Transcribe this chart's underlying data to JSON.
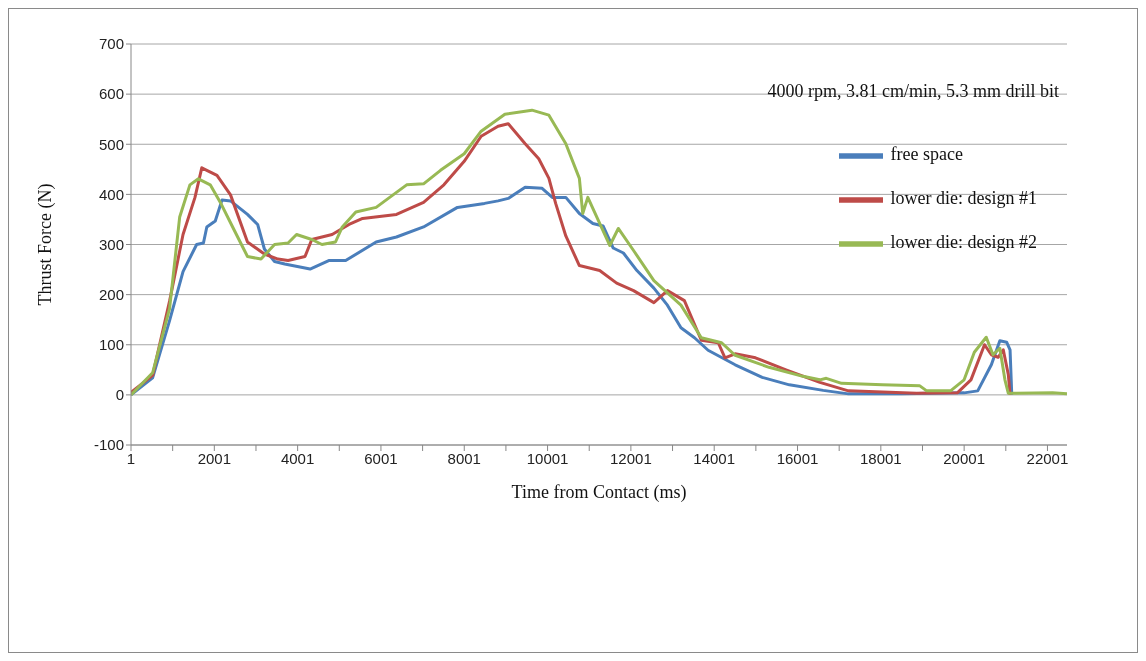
{
  "chart_data": {
    "type": "line",
    "xlabel": "Time from Contact (ms)",
    "ylabel": "Thrust Force (N)",
    "annotations": [
      "4000 rpm, 3.81 cm/min, 5.3 mm drill bit"
    ],
    "xlim": [
      1,
      22470
    ],
    "xticks": [
      1,
      {
        "value": 1001,
        "label": null
      },
      2001,
      {
        "value": 3001,
        "label": null
      },
      4001,
      {
        "value": 5001,
        "label": null
      },
      6001,
      {
        "value": 7001,
        "label": null
      },
      8001,
      {
        "value": 9001,
        "label": null
      },
      10001,
      {
        "value": 11001,
        "label": null
      },
      12001,
      {
        "value": 13001,
        "label": null
      },
      14001,
      {
        "value": 15001,
        "label": null
      },
      16001,
      {
        "value": 17001,
        "label": null
      },
      18001,
      {
        "value": 19001,
        "label": null
      },
      20001,
      {
        "value": 21001,
        "label": null
      },
      22001
    ],
    "ylim": [
      -100,
      700
    ],
    "yticks": [
      -100,
      0,
      100,
      200,
      300,
      400,
      500,
      600,
      700
    ],
    "grid": "y",
    "legend": "right",
    "marker": "none",
    "series": [
      {
        "name": "free space",
        "color": "#4a7ebb",
        "x": [
          1,
          520,
          927,
          1250,
          1577,
          1740,
          1821,
          2024,
          2187,
          2390,
          2797,
          3041,
          3203,
          3447,
          3691,
          4300,
          4748,
          5154,
          5886,
          6374,
          7024,
          7837,
          8487,
          8813,
          9057,
          9463,
          9870,
          10114,
          10439,
          10764,
          11089,
          11333,
          11577,
          11821,
          12146,
          12553,
          12878,
          13203,
          13528,
          13854,
          14504,
          15154,
          15805,
          16618,
          17222,
          18500,
          20000,
          20327,
          20654,
          20858,
          21021,
          21103,
          21144
        ],
        "values": [
          0,
          34,
          148,
          246,
          300,
          303,
          335,
          347,
          389,
          387,
          360,
          340,
          291,
          266,
          261,
          251,
          268,
          268,
          305,
          315,
          335,
          374,
          382,
          387,
          392,
          414,
          412,
          394,
          394,
          362,
          342,
          337,
          293,
          283,
          248,
          213,
          179,
          134,
          114,
          89,
          60,
          35,
          20,
          9,
          2,
          2,
          4,
          8,
          60,
          108,
          105,
          90,
          0
        ]
      },
      {
        "name": "lower die: design #1",
        "color": "#be4b48",
        "x": [
          1,
          520,
          927,
          1250,
          1537,
          1700,
          1821,
          2065,
          2390,
          2797,
          3203,
          3528,
          3772,
          4178,
          4341,
          4829,
          5235,
          5561,
          6374,
          7024,
          7512,
          8000,
          8407,
          8813,
          9057,
          9463,
          9789,
          10033,
          10195,
          10439,
          10764,
          11252,
          11659,
          12065,
          12553,
          12878,
          13285,
          13691,
          14098,
          14260,
          14504,
          14992,
          15724,
          16537,
          17222,
          18856,
          19837,
          20164,
          20490,
          20654,
          20817,
          20940,
          21062,
          21103
        ],
        "values": [
          5,
          39,
          187,
          320,
          394,
          453,
          448,
          438,
          399,
          305,
          281,
          271,
          268,
          276,
          310,
          320,
          340,
          352,
          360,
          384,
          419,
          466,
          516,
          536,
          541,
          501,
          471,
          432,
          382,
          317,
          258,
          248,
          223,
          208,
          184,
          208,
          188,
          109,
          104,
          74,
          82,
          74,
          50,
          25,
          8,
          3,
          4,
          30,
          100,
          80,
          75,
          90,
          40,
          0
        ]
      },
      {
        "name": "lower die: design #2",
        "color": "#98b954",
        "x": [
          1,
          520,
          927,
          1170,
          1415,
          1618,
          1903,
          2146,
          2471,
          2797,
          3122,
          3447,
          3772,
          3975,
          4341,
          4585,
          4910,
          5073,
          5398,
          5886,
          6211,
          6618,
          7024,
          7431,
          8000,
          8407,
          8976,
          9626,
          10033,
          10439,
          10764,
          10845,
          10967,
          11252,
          11496,
          11699,
          12065,
          12553,
          13203,
          13691,
          14179,
          14504,
          15317,
          16130,
          16537,
          16691,
          17059,
          18039,
          18938,
          19102,
          19674,
          20000,
          20245,
          20531,
          20694,
          20858,
          20980,
          21062,
          22124,
          22470
        ],
        "values": [
          0,
          44,
          172,
          355,
          419,
          431,
          419,
          384,
          330,
          276,
          271,
          300,
          303,
          320,
          310,
          300,
          305,
          335,
          365,
          374,
          394,
          419,
          421,
          448,
          481,
          526,
          560,
          568,
          558,
          501,
          432,
          362,
          394,
          342,
          298,
          332,
          288,
          228,
          179,
          114,
          104,
          79,
          55,
          37,
          30,
          33,
          23,
          20,
          18,
          8,
          8,
          30,
          85,
          115,
          80,
          93,
          30,
          3,
          4,
          2
        ]
      }
    ]
  }
}
